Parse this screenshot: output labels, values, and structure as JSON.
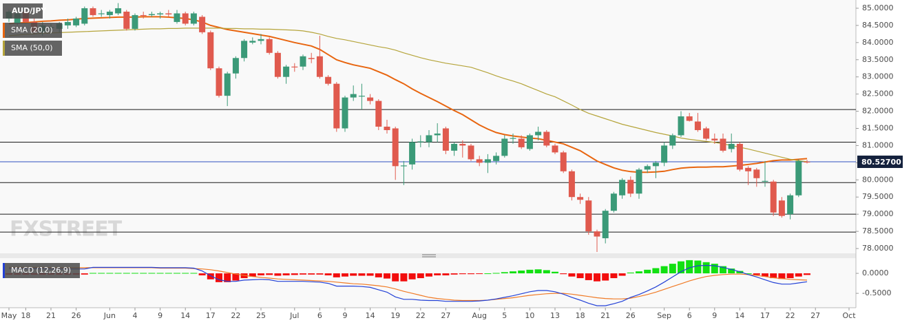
{
  "chart_data": [
    {
      "type": "candlestick",
      "title": "AUD/JPY",
      "watermark": "FXSTREET",
      "categories": [
        "May",
        null,
        "18",
        null,
        null,
        "21",
        null,
        null,
        "26",
        null,
        null,
        null,
        "Jun",
        null,
        null,
        "4",
        null,
        null,
        "9",
        null,
        null,
        "14",
        null,
        null,
        "17",
        null,
        null,
        "22",
        null,
        null,
        "25",
        null,
        null,
        null,
        "Jul",
        null,
        null,
        "6",
        null,
        null,
        "9",
        null,
        null,
        "14",
        null,
        null,
        "19",
        null,
        null,
        "22",
        null,
        null,
        "27",
        null,
        null,
        null,
        "Aug",
        null,
        null,
        "5",
        null,
        null,
        "10",
        null,
        null,
        "13",
        null,
        null,
        "18",
        null,
        null,
        "21",
        null,
        null,
        "26",
        null,
        null,
        null,
        "Sep",
        null,
        null,
        "6",
        null,
        null,
        "9",
        null,
        null,
        "14",
        null,
        null,
        "17",
        null,
        null,
        "22",
        null,
        null,
        "27",
        null,
        null,
        null,
        "Oct"
      ],
      "open": [
        84.7,
        84.55,
        84.9,
        84.6,
        84.3,
        84.45,
        84.4,
        84.5,
        84.5,
        84.55,
        85.0,
        84.85,
        84.8,
        84.85,
        84.9,
        84.4,
        84.8,
        84.8,
        84.82,
        84.85,
        84.6,
        84.85,
        84.55,
        84.75,
        84.3,
        83.25,
        82.45,
        83.1,
        83.55,
        84.0,
        84.05,
        84.1,
        83.7,
        83.0,
        83.3,
        83.3,
        83.55,
        83.6,
        83.0,
        82.8,
        81.5,
        82.4,
        82.45,
        82.4,
        82.3,
        81.55,
        81.5,
        80.4,
        80.45,
        81.1,
        81.1,
        81.3,
        81.5,
        80.85,
        81.05,
        81.0,
        80.6,
        80.5,
        80.55,
        80.7,
        81.2,
        81.2,
        80.9,
        81.3,
        81.4,
        81.0,
        80.8,
        80.25,
        79.5,
        79.4,
        78.5,
        78.3,
        79.1,
        79.55,
        80.0,
        79.6,
        80.3,
        80.4,
        80.5,
        81.0,
        81.3,
        81.85,
        81.7,
        81.5,
        81.2,
        81.2,
        80.9,
        81.05,
        80.35,
        80.3,
        79.95,
        79.95,
        79.4,
        79.0,
        79.55,
        80.53,
        null,
        null,
        null,
        null,
        null
      ],
      "high": [
        84.95,
        84.95,
        84.95,
        84.7,
        84.6,
        84.55,
        84.6,
        84.7,
        84.75,
        85.05,
        85.05,
        84.95,
        84.95,
        85.15,
        84.95,
        84.85,
        84.9,
        84.9,
        84.9,
        84.95,
        84.95,
        84.9,
        84.9,
        84.8,
        84.35,
        83.3,
        83.15,
        83.6,
        84.1,
        84.15,
        84.25,
        84.15,
        83.75,
        83.35,
        83.4,
        83.65,
        83.7,
        84.2,
        83.05,
        82.85,
        82.45,
        82.75,
        82.8,
        82.5,
        82.35,
        81.75,
        81.55,
        80.55,
        81.2,
        81.3,
        81.45,
        81.65,
        81.55,
        81.1,
        81.15,
        81.05,
        80.7,
        80.75,
        80.8,
        81.3,
        81.35,
        81.3,
        81.35,
        81.55,
        81.45,
        81.05,
        80.85,
        80.3,
        79.6,
        79.5,
        78.55,
        79.15,
        79.65,
        80.05,
        80.1,
        80.35,
        80.45,
        80.55,
        81.1,
        81.35,
        82.0,
        81.95,
        81.95,
        81.55,
        81.35,
        81.35,
        81.35,
        81.1,
        80.4,
        80.35,
        80.55,
        80.0,
        79.5,
        79.6,
        80.6,
        80.58,
        null,
        null,
        null,
        null,
        null
      ],
      "low": [
        84.6,
        84.5,
        84.55,
        84.25,
        84.2,
        84.35,
        84.3,
        84.4,
        84.45,
        84.5,
        84.75,
        84.75,
        84.7,
        84.8,
        84.35,
        84.35,
        84.7,
        84.75,
        84.7,
        84.75,
        84.55,
        84.5,
        84.5,
        84.25,
        83.2,
        82.4,
        82.15,
        82.95,
        83.45,
        83.95,
        83.95,
        83.65,
        82.95,
        82.8,
        83.15,
        83.2,
        83.4,
        82.95,
        82.75,
        81.4,
        81.4,
        82.3,
        82.05,
        82.2,
        81.45,
        81.35,
        80.0,
        79.85,
        80.3,
        80.95,
        80.95,
        81.1,
        80.75,
        80.7,
        80.65,
        80.55,
        80.4,
        80.2,
        80.45,
        80.65,
        81.05,
        80.9,
        80.85,
        81.15,
        80.95,
        80.75,
        80.2,
        79.4,
        79.3,
        78.4,
        77.9,
        78.15,
        79.05,
        79.45,
        79.5,
        79.45,
        80.2,
        80.05,
        80.4,
        80.9,
        81.25,
        81.7,
        81.4,
        81.15,
        81.05,
        80.8,
        80.8,
        80.25,
        79.85,
        79.8,
        79.8,
        78.95,
        78.9,
        78.85,
        79.5,
        80.48,
        null,
        null,
        null,
        null,
        null
      ],
      "close": [
        84.9,
        84.85,
        84.6,
        84.3,
        84.5,
        84.45,
        84.55,
        84.6,
        84.7,
        85.0,
        84.8,
        84.85,
        84.9,
        85.0,
        84.4,
        84.8,
        84.78,
        84.83,
        84.85,
        84.82,
        84.85,
        84.55,
        84.85,
        84.3,
        83.25,
        82.45,
        83.1,
        83.55,
        84.05,
        84.05,
        84.1,
        83.7,
        83.0,
        83.3,
        83.28,
        83.6,
        83.52,
        83.0,
        82.8,
        81.5,
        82.4,
        82.5,
        82.45,
        82.3,
        81.55,
        81.45,
        80.4,
        80.42,
        81.1,
        81.12,
        81.3,
        81.35,
        80.85,
        81.05,
        81.0,
        80.6,
        80.5,
        80.6,
        80.7,
        81.2,
        81.22,
        80.95,
        81.3,
        81.4,
        81.0,
        80.8,
        80.25,
        79.5,
        79.42,
        78.5,
        78.35,
        79.1,
        79.6,
        80.0,
        79.6,
        80.3,
        80.4,
        80.5,
        81.0,
        81.3,
        81.85,
        81.72,
        81.45,
        81.2,
        81.15,
        80.85,
        81.05,
        80.3,
        80.25,
        80.05,
        79.97,
        79.05,
        78.95,
        79.55,
        80.55,
        80.527,
        null,
        null,
        null,
        null,
        null
      ],
      "up_color": "#3b9a78",
      "down_color": "#e05a4e",
      "overlays": [
        {
          "name": "SMA (20,0)",
          "color": "#e8650f",
          "values": [
            84.55,
            84.57,
            84.58,
            84.6,
            84.62,
            84.63,
            84.65,
            84.66,
            84.68,
            84.7,
            84.71,
            84.72,
            84.73,
            84.74,
            84.74,
            84.74,
            84.75,
            84.75,
            84.75,
            84.74,
            84.72,
            84.7,
            84.66,
            84.6,
            84.5,
            84.44,
            84.38,
            84.34,
            84.3,
            84.26,
            84.22,
            84.18,
            84.12,
            84.06,
            84.0,
            83.95,
            83.9,
            83.8,
            83.65,
            83.5,
            83.42,
            83.35,
            83.3,
            83.25,
            83.15,
            83.05,
            82.92,
            82.8,
            82.65,
            82.52,
            82.4,
            82.28,
            82.15,
            82.02,
            81.9,
            81.75,
            81.6,
            81.48,
            81.38,
            81.32,
            81.28,
            81.25,
            81.22,
            81.2,
            81.15,
            81.1,
            81.05,
            80.95,
            80.85,
            80.7,
            80.55,
            80.45,
            80.35,
            80.28,
            80.24,
            80.22,
            80.22,
            80.23,
            80.25,
            80.3,
            80.34,
            80.36,
            80.37,
            80.37,
            80.38,
            80.38,
            80.4,
            80.42,
            80.45,
            80.48,
            80.52,
            80.56,
            80.58,
            80.58,
            80.6,
            80.62,
            null,
            null,
            null,
            null,
            null
          ]
        },
        {
          "name": "SMA (50,0)",
          "color": "#b5a43a",
          "values": [
            84.2,
            84.22,
            84.24,
            84.25,
            84.27,
            84.28,
            84.29,
            84.3,
            84.31,
            84.32,
            84.33,
            84.34,
            84.35,
            84.36,
            84.37,
            84.38,
            84.39,
            84.4,
            84.4,
            84.41,
            84.41,
            84.42,
            84.42,
            84.42,
            84.42,
            84.42,
            84.41,
            84.41,
            84.4,
            84.4,
            84.39,
            84.39,
            84.38,
            84.37,
            84.36,
            84.34,
            84.3,
            84.25,
            84.18,
            84.12,
            84.08,
            84.03,
            83.98,
            83.93,
            83.88,
            83.84,
            83.78,
            83.7,
            83.63,
            83.56,
            83.5,
            83.45,
            83.4,
            83.36,
            83.32,
            83.28,
            83.2,
            83.12,
            83.03,
            82.95,
            82.88,
            82.8,
            82.7,
            82.6,
            82.5,
            82.42,
            82.3,
            82.18,
            82.05,
            81.94,
            81.86,
            81.78,
            81.7,
            81.62,
            81.56,
            81.5,
            81.44,
            81.38,
            81.33,
            81.28,
            81.22,
            81.18,
            81.15,
            81.12,
            81.09,
            81.05,
            81.0,
            80.95,
            80.9,
            80.84,
            80.78,
            80.72,
            80.66,
            80.6,
            80.56,
            80.53,
            null,
            null,
            null,
            null,
            null
          ]
        }
      ],
      "levels": [
        82.05,
        81.1,
        79.92,
        79.0,
        78.48
      ],
      "level_color": "#1a1a1a",
      "last_price": {
        "value": 80.527,
        "label": "80.52700"
      },
      "last_price_color": "#2f4fc0",
      "ylim": [
        77.86,
        85.24
      ],
      "yticks": [
        {
          "value": 85,
          "label": "85.0000"
        },
        {
          "value": 84.5,
          "label": "84.5000"
        },
        {
          "value": 84,
          "label": "84.0000"
        },
        {
          "value": 83.5,
          "label": "83.5000"
        },
        {
          "value": 83,
          "label": "83.0000"
        },
        {
          "value": 82.5,
          "label": "82.5000"
        },
        {
          "value": 82,
          "label": "82.0000"
        },
        {
          "value": 81.5,
          "label": "81.5000"
        },
        {
          "value": 81,
          "label": "81.0000"
        },
        {
          "value": 80.5,
          "label": "80.5000"
        },
        {
          "value": 80,
          "label": "80.0000"
        },
        {
          "value": 79.5,
          "label": "79.5000"
        },
        {
          "value": 79,
          "label": "79.0000"
        },
        {
          "value": 78.5,
          "label": "78.5000"
        },
        {
          "value": 78,
          "label": "78.0000"
        }
      ]
    },
    {
      "type": "macd",
      "title": "MACD (12,26,9)",
      "histogram": [
        -0.03,
        -0.03,
        -0.03,
        -0.03,
        -0.03,
        -0.03,
        -0.03,
        -0.03,
        -0.03,
        -0.03,
        0.01,
        0.01,
        0.01,
        0.01,
        0.01,
        0.01,
        0.01,
        0.01,
        0.01,
        0.01,
        0.01,
        0.01,
        0.01,
        -0.05,
        -0.15,
        -0.22,
        -0.22,
        -0.18,
        -0.12,
        -0.08,
        -0.05,
        -0.04,
        -0.06,
        -0.05,
        -0.04,
        -0.03,
        -0.03,
        -0.03,
        -0.05,
        -0.1,
        -0.08,
        -0.06,
        -0.06,
        -0.06,
        -0.1,
        -0.13,
        -0.2,
        -0.2,
        -0.15,
        -0.12,
        -0.08,
        -0.05,
        -0.05,
        -0.03,
        -0.02,
        -0.02,
        -0.01,
        0.0,
        0.01,
        0.03,
        0.05,
        0.07,
        0.09,
        0.1,
        0.08,
        0.04,
        -0.02,
        -0.08,
        -0.12,
        -0.17,
        -0.2,
        -0.18,
        -0.12,
        -0.06,
        0.02,
        0.05,
        0.09,
        0.13,
        0.18,
        0.24,
        0.3,
        0.33,
        0.32,
        0.28,
        0.24,
        0.18,
        0.12,
        0.06,
        0.0,
        -0.04,
        -0.08,
        -0.12,
        -0.14,
        -0.12,
        -0.08,
        -0.04,
        null,
        null,
        null,
        null,
        null
      ],
      "macd_line": [
        0.12,
        0.12,
        0.12,
        0.12,
        0.12,
        0.11,
        0.11,
        0.11,
        0.11,
        0.11,
        0.15,
        0.15,
        0.15,
        0.15,
        0.15,
        0.15,
        0.15,
        0.15,
        0.14,
        0.14,
        0.14,
        0.14,
        0.13,
        0.06,
        -0.06,
        -0.16,
        -0.2,
        -0.2,
        -0.17,
        -0.16,
        -0.15,
        -0.16,
        -0.2,
        -0.2,
        -0.2,
        -0.2,
        -0.21,
        -0.22,
        -0.25,
        -0.32,
        -0.32,
        -0.32,
        -0.33,
        -0.35,
        -0.41,
        -0.47,
        -0.59,
        -0.65,
        -0.65,
        -0.67,
        -0.68,
        -0.68,
        -0.7,
        -0.7,
        -0.7,
        -0.7,
        -0.69,
        -0.67,
        -0.64,
        -0.6,
        -0.56,
        -0.51,
        -0.46,
        -0.43,
        -0.43,
        -0.46,
        -0.52,
        -0.6,
        -0.67,
        -0.75,
        -0.81,
        -0.81,
        -0.76,
        -0.7,
        -0.6,
        -0.53,
        -0.44,
        -0.34,
        -0.22,
        -0.09,
        0.04,
        0.14,
        0.19,
        0.2,
        0.19,
        0.15,
        0.1,
        0.04,
        -0.03,
        -0.09,
        -0.16,
        -0.23,
        -0.27,
        -0.27,
        -0.24,
        -0.21,
        null,
        null,
        null,
        null,
        null
      ],
      "signal_line": [
        0.15,
        0.15,
        0.15,
        0.15,
        0.15,
        0.14,
        0.14,
        0.14,
        0.14,
        0.14,
        0.14,
        0.14,
        0.14,
        0.14,
        0.14,
        0.14,
        0.14,
        0.14,
        0.13,
        0.13,
        0.13,
        0.13,
        0.12,
        0.11,
        0.09,
        0.06,
        0.02,
        -0.02,
        -0.05,
        -0.08,
        -0.1,
        -0.12,
        -0.14,
        -0.15,
        -0.16,
        -0.17,
        -0.18,
        -0.19,
        -0.2,
        -0.22,
        -0.24,
        -0.26,
        -0.27,
        -0.29,
        -0.31,
        -0.34,
        -0.39,
        -0.45,
        -0.5,
        -0.55,
        -0.6,
        -0.63,
        -0.65,
        -0.67,
        -0.68,
        -0.68,
        -0.68,
        -0.67,
        -0.65,
        -0.63,
        -0.61,
        -0.58,
        -0.55,
        -0.53,
        -0.51,
        -0.5,
        -0.5,
        -0.52,
        -0.55,
        -0.58,
        -0.61,
        -0.63,
        -0.64,
        -0.64,
        -0.62,
        -0.58,
        -0.53,
        -0.47,
        -0.4,
        -0.33,
        -0.26,
        -0.19,
        -0.13,
        -0.08,
        -0.05,
        -0.03,
        -0.02,
        -0.02,
        -0.03,
        -0.05,
        -0.08,
        -0.11,
        -0.13,
        -0.15,
        -0.16,
        -0.17,
        null,
        null,
        null,
        null,
        null
      ],
      "colors": {
        "histogram_up": "#12e012",
        "histogram_down": "#f20d0d",
        "macd_line": "#2240d6",
        "signal_line": "#f07a25",
        "label_swatch": "#2240d6"
      },
      "ylim": [
        -0.86,
        0.38
      ],
      "yticks": [
        {
          "value": 0,
          "label": "0.0000"
        },
        {
          "value": -0.5,
          "label": "-0.5000"
        }
      ]
    }
  ]
}
